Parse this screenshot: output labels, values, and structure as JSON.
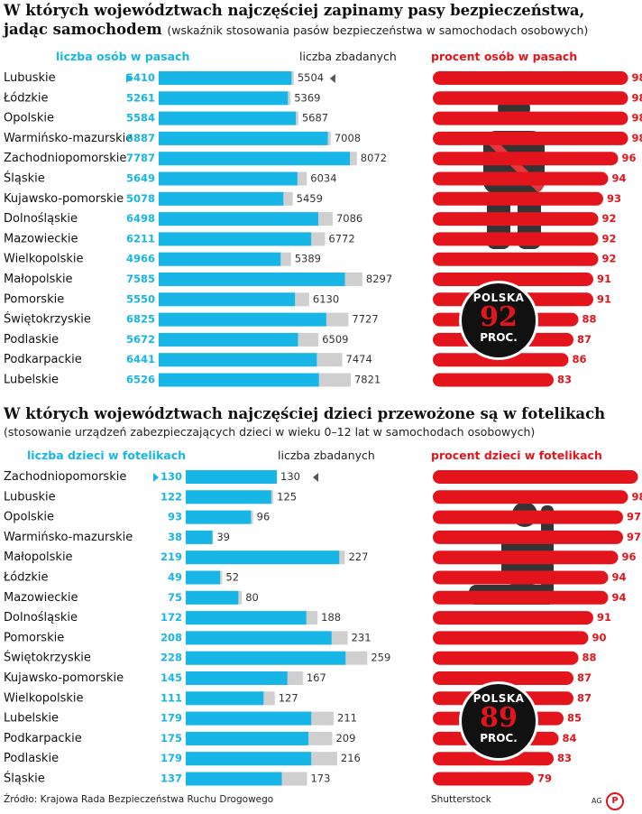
{
  "colors": {
    "cyan": "#17b6e6",
    "gray": "#cfcfcf",
    "red": "#e3141b",
    "badge": "#111111"
  },
  "section1": {
    "title": "W których województwach najczęściej zapinamy pasy bezpieczeństwa,",
    "title2": "jadąc samochodem",
    "subtitle": "(wskaźnik stosowania pasów bezpieczeństwa w samochodach osobowych)",
    "header_left": "liczba osób w pasach",
    "header_mid": "liczba zbadanych",
    "header_right": "procent osób w pasach",
    "badge_line1": "POLSKA",
    "badge_value": "92",
    "badge_line3": "PROC.",
    "icon": "seatbelt-person-icon"
  },
  "section2": {
    "title": "W których województwach najczęściej dzieci przewożone są w fotelikach",
    "subtitle": "(stosowanie urządzeń zabezpieczających dzieci w wieku 0–12 lat w samochodach osobowych)",
    "header_left": "liczba dzieci w fotelikach",
    "header_mid": "liczba zbadanych",
    "header_right": "procent dzieci w fotelikach",
    "badge_line1": "POLSKA",
    "badge_value": "89",
    "badge_line3": "PROC.",
    "icon": "child-seat-icon"
  },
  "footer": {
    "source": "Źródło: Krajowa Rada Bezpieczeństwa Ruchu Drogowego",
    "credit": "Shutterstock",
    "ag": "AG",
    "logo": "PAP"
  },
  "chart_data": [
    {
      "type": "bar",
      "title": "W których województwach najczęściej zapinamy pasy bezpieczeństwa, jadąc samochodem",
      "categories": [
        "Lubuskie",
        "Łódzkie",
        "Opolskie",
        "Warmińsko-mazurskie",
        "Zachodniopomorskie",
        "Śląskie",
        "Kujawsko-pomorskie",
        "Dolnośląskie",
        "Mazowieckie",
        "Wielkopolskie",
        "Małopolskie",
        "Pomorskie",
        "Świętokrzyskie",
        "Podlaskie",
        "Podkarpackie",
        "Lubelskie"
      ],
      "series": [
        {
          "name": "liczba osób w pasach",
          "values": [
            5410,
            5261,
            5584,
            6887,
            7787,
            5649,
            5078,
            6498,
            6211,
            4966,
            7585,
            5550,
            6825,
            5672,
            6441,
            6526
          ]
        },
        {
          "name": "liczba zbadanych",
          "values": [
            5504,
            5369,
            5687,
            7008,
            8072,
            6034,
            5459,
            7086,
            6772,
            5389,
            8297,
            6130,
            7727,
            6509,
            7474,
            7821
          ]
        },
        {
          "name": "procent osób w pasach",
          "values": [
            98,
            98,
            98,
            98,
            96,
            94,
            93,
            92,
            92,
            92,
            91,
            91,
            88,
            87,
            86,
            83
          ]
        }
      ],
      "max": 8300,
      "average": 92
    },
    {
      "type": "bar",
      "title": "W których województwach najczęściej dzieci przewożone są w fotelikach",
      "categories": [
        "Zachodniopomorskie",
        "Lubuskie",
        "Opolskie",
        "Warmińsko-mazurskie",
        "Małopolskie",
        "Łódzkie",
        "Mazowieckie",
        "Dolnośląskie",
        "Pomorskie",
        "Świętokrzyskie",
        "Kujawsko-pomorskie",
        "Wielkopolskie",
        "Lubelskie",
        "Podkarpackie",
        "Podlaskie",
        "Śląskie"
      ],
      "series": [
        {
          "name": "liczba dzieci w fotelikach",
          "values": [
            130,
            122,
            93,
            38,
            219,
            49,
            75,
            172,
            208,
            228,
            145,
            111,
            179,
            175,
            179,
            137
          ]
        },
        {
          "name": "liczba zbadanych",
          "values": [
            130,
            125,
            96,
            39,
            227,
            52,
            80,
            188,
            231,
            259,
            167,
            127,
            211,
            209,
            216,
            173
          ]
        },
        {
          "name": "procent dzieci w fotelikach",
          "values": [
            100,
            98,
            97,
            97,
            96,
            94,
            94,
            91,
            90,
            88,
            87,
            87,
            85,
            84,
            83,
            79
          ]
        }
      ],
      "max": 265,
      "average": 89
    }
  ]
}
